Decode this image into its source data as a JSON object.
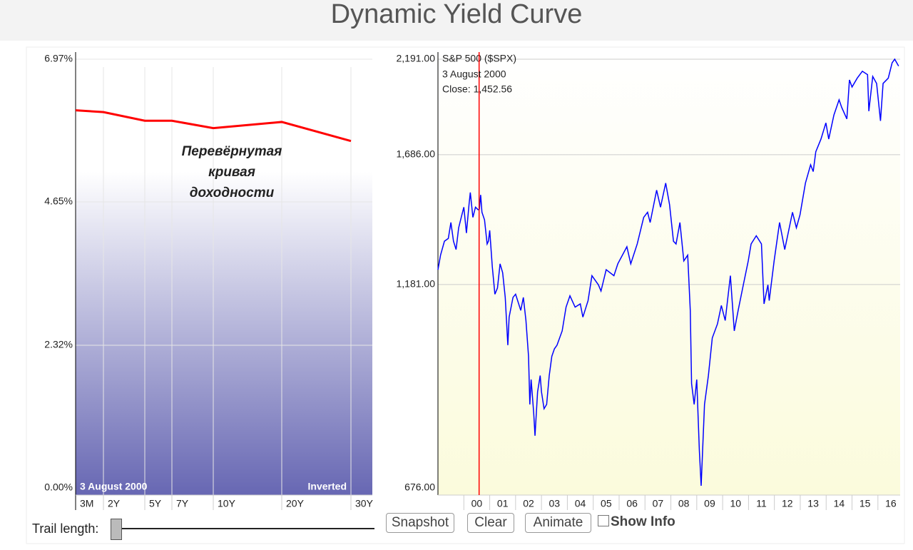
{
  "header": {
    "title": "Dynamic Yield Curve"
  },
  "chart_data": [
    {
      "type": "line",
      "categories": [
        "3M",
        "2Y",
        "5Y",
        "7Y",
        "10Y",
        "20Y",
        "30Y"
      ],
      "series": [
        {
          "color": "#ff0000",
          "values": [
            6.14,
            6.11,
            5.97,
            5.97,
            5.85,
            5.95,
            5.64
          ]
        }
      ],
      "ylim": [
        0,
        6.97
      ],
      "yticks": [
        {
          "value": 0,
          "label": "0.00%"
        },
        {
          "value": 2.32,
          "label": "2.32%"
        },
        {
          "value": 4.65,
          "label": "4.65%"
        },
        {
          "value": 6.97,
          "label": "6.97%"
        }
      ],
      "grid": true,
      "annotation_lines": [
        "Перевёрнутая",
        "кривая",
        "доходности"
      ],
      "date_label": "3  August 2000",
      "status": "Inverted"
    },
    {
      "type": "line",
      "log_scale": true,
      "x": [
        1999.0,
        1999.1,
        1999.25,
        1999.4,
        1999.5,
        1999.6,
        1999.7,
        1999.8,
        1999.9,
        2000.0,
        2000.1,
        2000.2,
        2000.25,
        2000.35,
        2000.45,
        2000.55,
        2000.6,
        2000.65,
        2000.7,
        2000.8,
        2000.9,
        2000.95,
        2001.0,
        2001.1,
        2001.2,
        2001.3,
        2001.4,
        2001.5,
        2001.6,
        2001.7,
        2001.75,
        2001.9,
        2002.0,
        2002.2,
        2002.3,
        2002.4,
        2002.5,
        2002.55,
        2002.6,
        2002.7,
        2002.75,
        2002.85,
        2002.95,
        2003.0,
        2003.1,
        2003.2,
        2003.3,
        2003.4,
        2003.5,
        2003.6,
        2003.8,
        2003.95,
        2004.1,
        2004.3,
        2004.5,
        2004.6,
        2004.8,
        2004.95,
        2005.2,
        2005.3,
        2005.5,
        2005.8,
        2005.95,
        2006.3,
        2006.45,
        2006.7,
        2006.95,
        2007.1,
        2007.2,
        2007.45,
        2007.6,
        2007.8,
        2007.95,
        2008.1,
        2008.2,
        2008.35,
        2008.5,
        2008.65,
        2008.75,
        2008.8,
        2008.9,
        2009.0,
        2009.1,
        2009.17,
        2009.3,
        2009.45,
        2009.6,
        2009.8,
        2009.95,
        2010.1,
        2010.3,
        2010.45,
        2010.6,
        2010.8,
        2010.99,
        2011.1,
        2011.3,
        2011.5,
        2011.6,
        2011.75,
        2011.8,
        2011.99,
        2012.2,
        2012.4,
        2012.7,
        2012.85,
        2012.99,
        2013.2,
        2013.4,
        2013.5,
        2013.6,
        2013.8,
        2013.99,
        2014.1,
        2014.3,
        2014.5,
        2014.6,
        2014.8,
        2014.9,
        2015.0,
        2015.2,
        2015.4,
        2015.6,
        2015.65,
        2015.8,
        2015.95,
        2016.1,
        2016.2,
        2016.4,
        2016.55,
        2016.65,
        2016.8
      ],
      "series": [
        {
          "name": "S&P 500 ($SPX)",
          "color": "#0000ff",
          "values": [
            1230,
            1280,
            1330,
            1340,
            1400,
            1330,
            1300,
            1380,
            1420,
            1460,
            1360,
            1470,
            1520,
            1420,
            1460,
            1450,
            1452,
            1510,
            1440,
            1410,
            1320,
            1330,
            1370,
            1240,
            1150,
            1170,
            1250,
            1220,
            1140,
            1000,
            1080,
            1140,
            1150,
            1100,
            1140,
            1070,
            970,
            850,
            910,
            830,
            780,
            880,
            920,
            880,
            840,
            850,
            920,
            970,
            990,
            1000,
            1040,
            1110,
            1145,
            1110,
            1120,
            1080,
            1130,
            1210,
            1180,
            1160,
            1230,
            1210,
            1250,
            1310,
            1250,
            1320,
            1420,
            1440,
            1400,
            1530,
            1460,
            1560,
            1470,
            1330,
            1320,
            1400,
            1260,
            1280,
            1100,
            900,
            850,
            910,
            750,
            680,
            850,
            920,
            1020,
            1060,
            1115,
            1070,
            1210,
            1040,
            1100,
            1180,
            1260,
            1320,
            1350,
            1320,
            1120,
            1180,
            1130,
            1260,
            1400,
            1300,
            1440,
            1380,
            1430,
            1560,
            1640,
            1610,
            1700,
            1760,
            1840,
            1760,
            1880,
            1960,
            1920,
            1860,
            2070,
            2030,
            2080,
            2120,
            2100,
            1900,
            2090,
            2050,
            1850,
            2050,
            2080,
            2170,
            2191,
            2150
          ]
        }
      ],
      "xlim": [
        1999.0,
        2016.86
      ],
      "xticks": [
        {
          "value": 2000,
          "label": "00"
        },
        {
          "value": 2001,
          "label": "01"
        },
        {
          "value": 2002,
          "label": "02"
        },
        {
          "value": 2003,
          "label": "03"
        },
        {
          "value": 2004,
          "label": "04"
        },
        {
          "value": 2005,
          "label": "05"
        },
        {
          "value": 2006,
          "label": "06"
        },
        {
          "value": 2007,
          "label": "07"
        },
        {
          "value": 2008,
          "label": "08"
        },
        {
          "value": 2009,
          "label": "09"
        },
        {
          "value": 2010,
          "label": "10"
        },
        {
          "value": 2011,
          "label": "11"
        },
        {
          "value": 2012,
          "label": "12"
        },
        {
          "value": 2013,
          "label": "13"
        },
        {
          "value": 2014,
          "label": "14"
        },
        {
          "value": 2015,
          "label": "15"
        },
        {
          "value": 2016,
          "label": "16"
        }
      ],
      "ylim": [
        676,
        2191
      ],
      "yticks": [
        {
          "value": 676,
          "label": "676.00"
        },
        {
          "value": 1181,
          "label": "1,181.00"
        },
        {
          "value": 1686,
          "label": "1,686.00"
        },
        {
          "value": 2191,
          "label": "2,191.00"
        }
      ],
      "grid": true,
      "cursor": {
        "x": 2000.59,
        "color": "#ff0000",
        "date": "3  August 2000",
        "label": "Close: 1,452.56"
      }
    }
  ],
  "controls": {
    "trail_label": "Trail length:",
    "buttons": [
      "Snapshot",
      "Clear",
      "Animate"
    ],
    "checkbox_label": "Show Info"
  }
}
